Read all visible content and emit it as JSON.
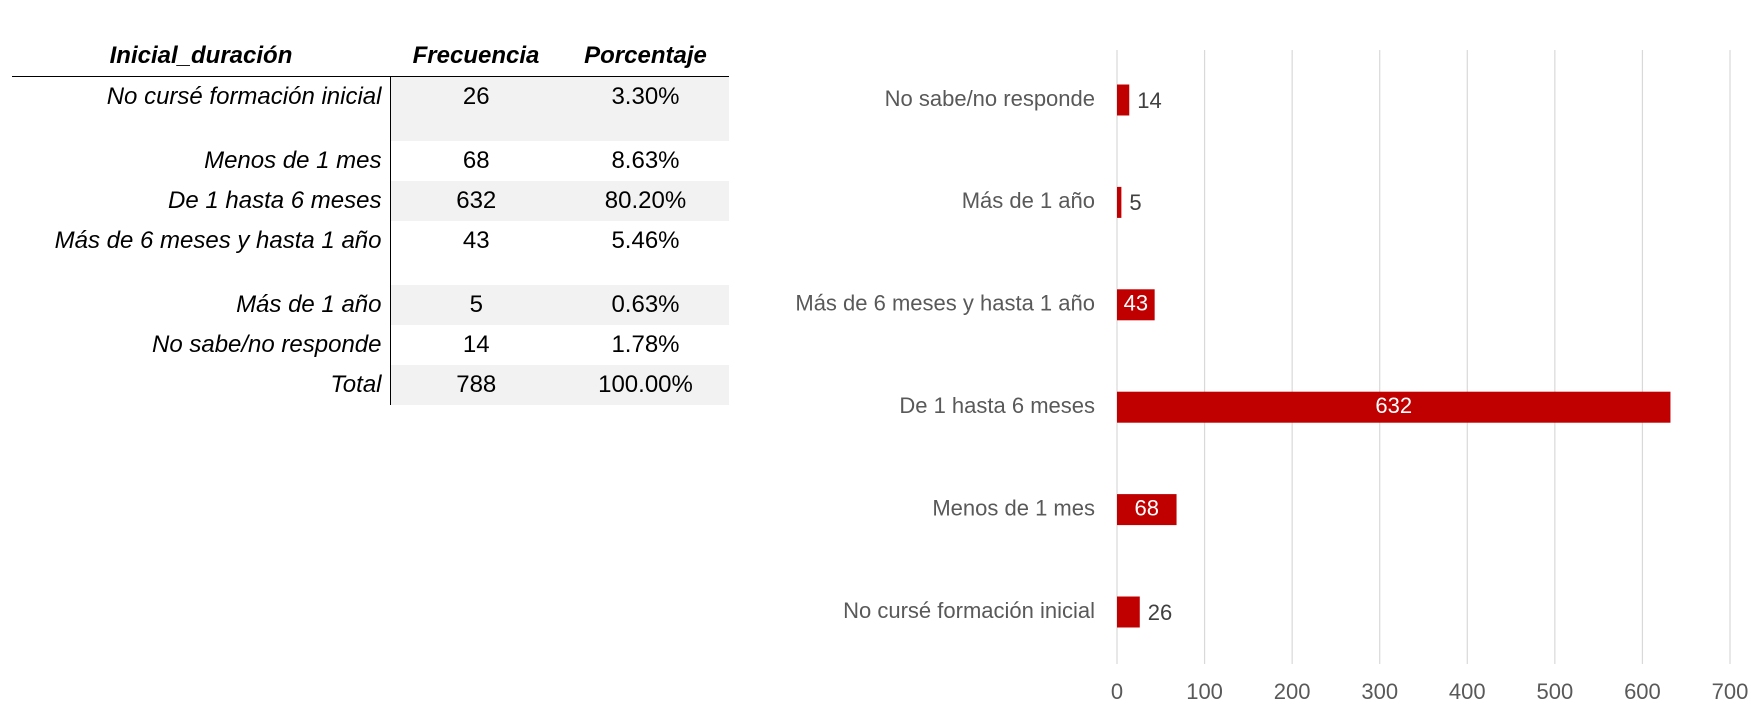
{
  "table": {
    "header": [
      "Inicial_duración",
      "Frecuencia",
      "Porcentaje"
    ],
    "rows": [
      [
        "No cursé formación inicial",
        "26",
        "3.30%"
      ],
      [
        "Menos de 1 mes",
        "68",
        "8.63%"
      ],
      [
        "De 1 hasta 6 meses",
        "632",
        "80.20%"
      ],
      [
        "Más de 6 meses y hasta 1 año",
        "43",
        "5.46%"
      ],
      [
        "Más de 1 año",
        "5",
        "0.63%"
      ],
      [
        "No sabe/no responde",
        "14",
        "1.78%"
      ],
      [
        "Total",
        "788",
        "100.00%"
      ]
    ]
  },
  "chart_data": {
    "type": "hbar",
    "categories": [
      "No sabe/no responde",
      "Más de 1 año",
      "Más de 6 meses y hasta 1 año",
      "De 1 hasta 6 meses",
      "Menos de 1 mes",
      "No cursé formación inicial"
    ],
    "values": [
      14,
      5,
      43,
      632,
      68,
      26
    ],
    "color": "#c00000",
    "xlim": [
      0,
      700
    ],
    "xticks": [
      0,
      100,
      200,
      300,
      400,
      500,
      600,
      700
    ],
    "grid": true
  }
}
